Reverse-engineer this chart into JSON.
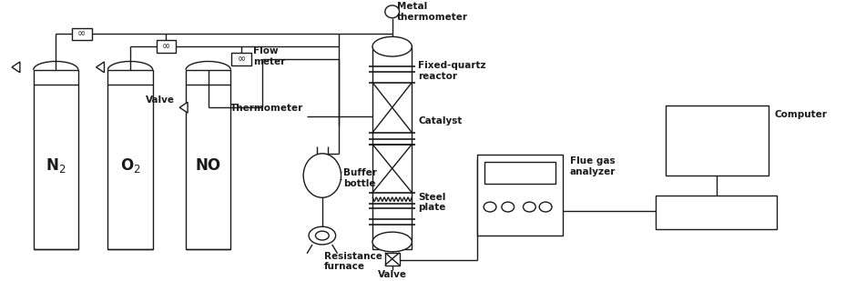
{
  "bg_color": "#ffffff",
  "line_color": "#1a1a1a",
  "labels": {
    "N2": "N$_2$",
    "O2": "O$_2$",
    "NO": "NO",
    "metal_thermo": "Metal\nthermometer",
    "fixed_quartz": "Fixed-quartz\nreactor",
    "thermometer": "Thermometer",
    "catalyst": "Catalyst",
    "buffer_bottle": "Buffer\nbottle",
    "steel_plate": "Steel\nplate",
    "resistance_furnace": "Resistance\nfurnace",
    "valve_bottom": "Valve",
    "flow_meter": "Flow\nmeter",
    "valve_inline": "Valve",
    "flue_gas": "Flue gas\nanalyzer",
    "computer": "Computer"
  }
}
